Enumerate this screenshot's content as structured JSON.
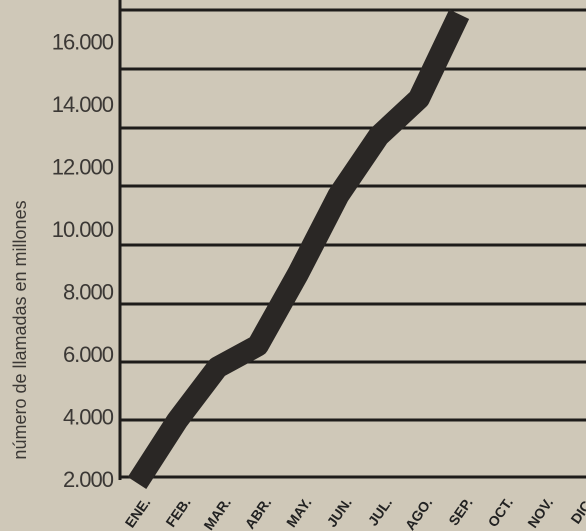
{
  "chart_data": {
    "type": "line",
    "title": "",
    "xlabel": "",
    "ylabel": "número de llamadas en millones",
    "categories": [
      "ENE.",
      "FEB.",
      "MAR.",
      "ABR.",
      "MAY.",
      "JUN.",
      "JUL.",
      "AGO.",
      "SEP.",
      "OCT.",
      "NOV.",
      "DIC."
    ],
    "yticks": [
      "2.000",
      "4.000",
      "6.000",
      "8.000",
      "10.000",
      "12.000",
      "14.000",
      "16.000"
    ],
    "ylim": [
      1000,
      17000
    ],
    "series": [
      {
        "values": [
          1800,
          3800,
          5500,
          6200,
          8500,
          11000,
          12900,
          14100,
          16800,
          null,
          null,
          null
        ]
      }
    ],
    "grid": true,
    "colors": {
      "background": "#cfc8b8",
      "grid": "#1e1c1a",
      "line": "#2a2725"
    }
  }
}
